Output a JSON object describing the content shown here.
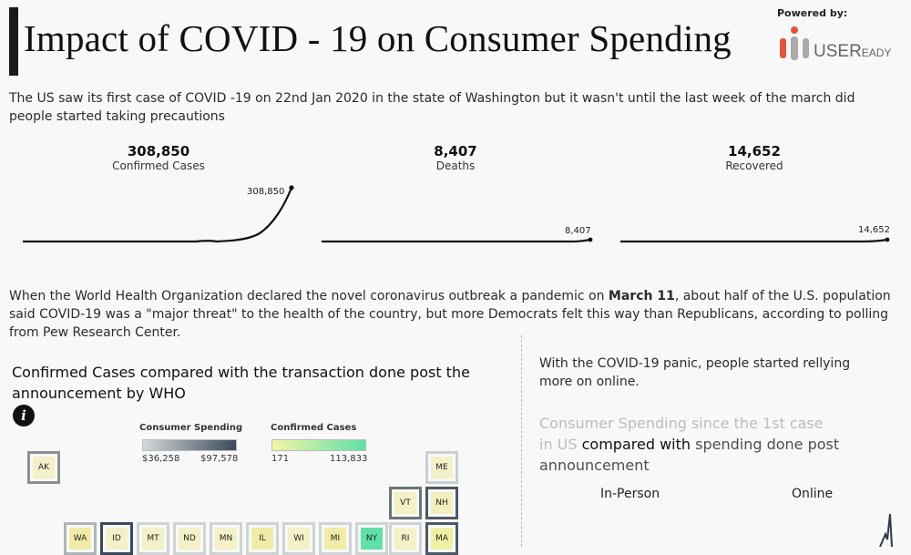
{
  "header": {
    "title": "Impact of COVID - 19 on Consumer Spending",
    "powered_by": "Powered by:",
    "logo_main": "USER",
    "logo_small": "EADY"
  },
  "intro_text": "The US saw its first case of COVID -19 on 22nd Jan 2020 in the state of Washington but it wasn't until the last week of the march did people started taking precautions",
  "kpis": [
    {
      "value": "308,850",
      "label": "Confirmed Cases",
      "end_label": "308,850"
    },
    {
      "value": "8,407",
      "label": "Deaths",
      "end_label": "8,407"
    },
    {
      "value": "14,652",
      "label": "Recovered",
      "end_label": "14,652"
    }
  ],
  "paragraph2": {
    "before": "When the World Health Organization declared the novel coronavirus outbreak a pandemic on ",
    "bold": "March 11",
    "after": ", about half of the U.S. population said COVID-19 was a \"major threat\" to the health of the country, but more Democrats felt this way than Republicans, according to polling from Pew Research Center."
  },
  "section_title": "Confirmed Cases compared with the transaction done post the announcement by WHO",
  "info_icon_glyph": "i",
  "legends": {
    "spending": {
      "title": "Consumer Spending",
      "min": "$36,258",
      "max": "$97,578"
    },
    "cases": {
      "title": "Confirmed Cases",
      "min": "171",
      "max": "113,833"
    }
  },
  "states": [
    "AK",
    "ME",
    "VT",
    "NH",
    "WA",
    "ID",
    "MT",
    "ND",
    "MN",
    "IL",
    "WI",
    "MI",
    "NY",
    "RI",
    "MA"
  ],
  "right_panel": {
    "intro": "With the COVID-19 panic, people started rellying more on online.",
    "title_faint": "Consumer Spending since the 1st case in US",
    "title_dark1": " compared with ",
    "title_mid": "spending done post announcement",
    "col_in_person": "In-Person",
    "col_online": "Online"
  },
  "colors": {
    "spending_low": "#d4d8d8",
    "spending_high": "#3a4a5c",
    "cases_low": "#f2f7a6",
    "cases_high": "#5fe0a8",
    "title_bar": "#1b1b1b"
  }
}
